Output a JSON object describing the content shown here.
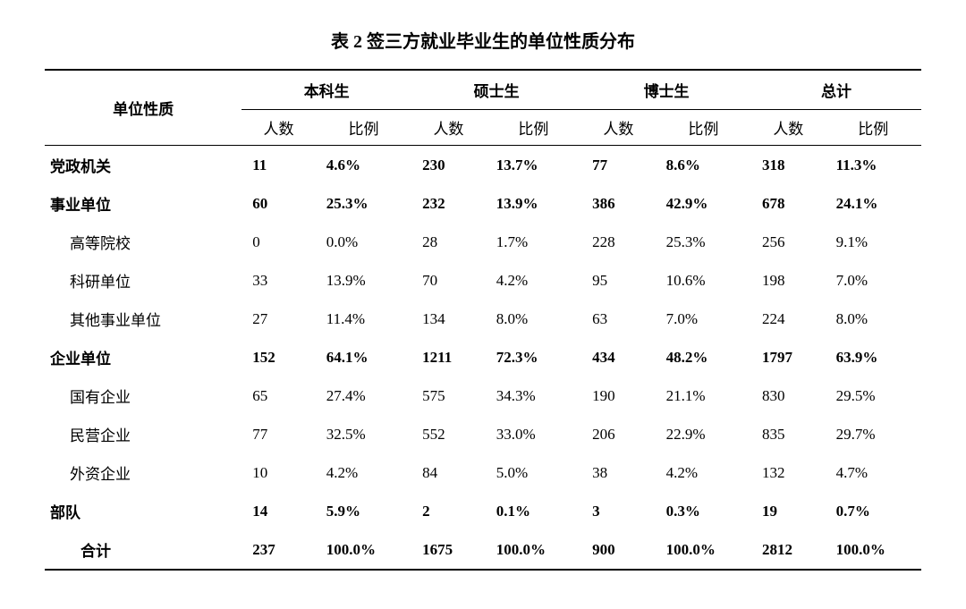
{
  "title": "表 2 签三方就业毕业生的单位性质分布",
  "rowlabel_header": "单位性质",
  "groups": [
    {
      "name": "本科生"
    },
    {
      "name": "硕士生"
    },
    {
      "name": "博士生"
    },
    {
      "name": "总计"
    }
  ],
  "subheaders": {
    "count": "人数",
    "pct": "比例"
  },
  "rows": [
    {
      "label": "党政机关",
      "type": "main",
      "vals": [
        "11",
        "4.6%",
        "230",
        "13.7%",
        "77",
        "8.6%",
        "318",
        "11.3%"
      ]
    },
    {
      "label": "事业单位",
      "type": "main",
      "vals": [
        "60",
        "25.3%",
        "232",
        "13.9%",
        "386",
        "42.9%",
        "678",
        "24.1%"
      ]
    },
    {
      "label": "高等院校",
      "type": "sub",
      "vals": [
        "0",
        "0.0%",
        "28",
        "1.7%",
        "228",
        "25.3%",
        "256",
        "9.1%"
      ]
    },
    {
      "label": "科研单位",
      "type": "sub",
      "vals": [
        "33",
        "13.9%",
        "70",
        "4.2%",
        "95",
        "10.6%",
        "198",
        "7.0%"
      ]
    },
    {
      "label": "其他事业单位",
      "type": "sub",
      "vals": [
        "27",
        "11.4%",
        "134",
        "8.0%",
        "63",
        "7.0%",
        "224",
        "8.0%"
      ]
    },
    {
      "label": "企业单位",
      "type": "main",
      "vals": [
        "152",
        "64.1%",
        "1211",
        "72.3%",
        "434",
        "48.2%",
        "1797",
        "63.9%"
      ]
    },
    {
      "label": "国有企业",
      "type": "sub",
      "vals": [
        "65",
        "27.4%",
        "575",
        "34.3%",
        "190",
        "21.1%",
        "830",
        "29.5%"
      ]
    },
    {
      "label": "民营企业",
      "type": "sub",
      "vals": [
        "77",
        "32.5%",
        "552",
        "33.0%",
        "206",
        "22.9%",
        "835",
        "29.7%"
      ]
    },
    {
      "label": "外资企业",
      "type": "sub",
      "vals": [
        "10",
        "4.2%",
        "84",
        "5.0%",
        "38",
        "4.2%",
        "132",
        "4.7%"
      ]
    },
    {
      "label": "部队",
      "type": "main",
      "vals": [
        "14",
        "5.9%",
        "2",
        "0.1%",
        "3",
        "0.3%",
        "19",
        "0.7%"
      ]
    },
    {
      "label": "合计",
      "type": "total",
      "vals": [
        "237",
        "100.0%",
        "1675",
        "100.0%",
        "900",
        "100.0%",
        "2812",
        "100.0%"
      ]
    }
  ],
  "style": {
    "background_color": "#ffffff",
    "text_color": "#000000",
    "title_fontsize": 20,
    "body_fontsize": 17,
    "rule_thick": 2,
    "rule_thin": 1,
    "font_family": "SimSun"
  }
}
